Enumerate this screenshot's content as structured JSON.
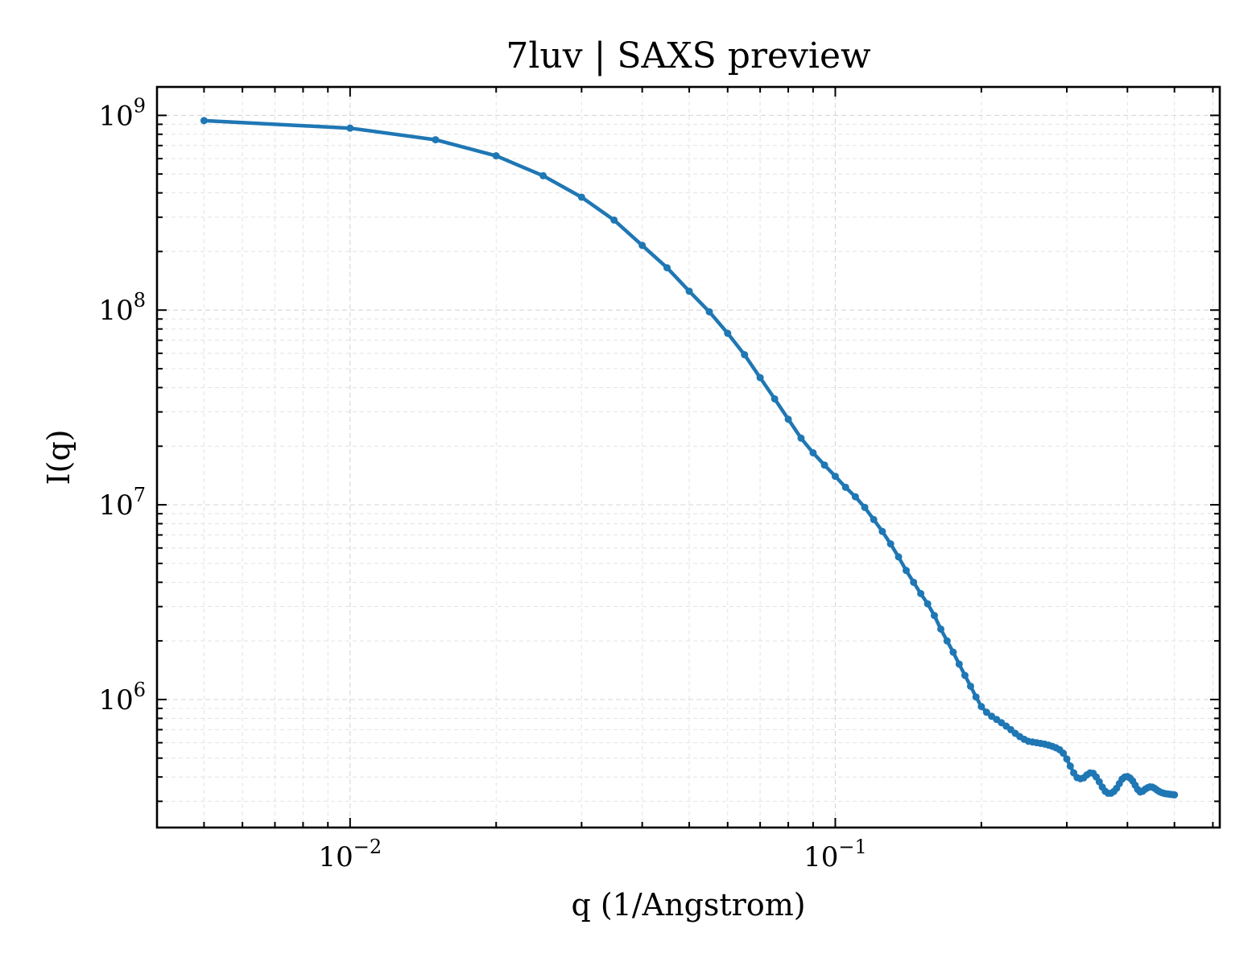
{
  "chart_data": {
    "type": "line",
    "title": "7luv | SAXS preview",
    "xlabel": "q (1/Angstrom)",
    "ylabel": "I(q)",
    "xscale": "log",
    "yscale": "log",
    "xlim": [
      0.004,
      0.62
    ],
    "ylim": [
      220000,
      1400000000
    ],
    "x_ticks": [
      {
        "value": 0.01,
        "base": "10",
        "exp": "−2"
      },
      {
        "value": 0.1,
        "base": "10",
        "exp": "−1"
      }
    ],
    "y_ticks": [
      {
        "value": 1000000,
        "base": "10",
        "exp": "6"
      },
      {
        "value": 10000000,
        "base": "10",
        "exp": "7"
      },
      {
        "value": 100000000,
        "base": "10",
        "exp": "8"
      },
      {
        "value": 1000000000,
        "base": "10",
        "exp": "9"
      }
    ],
    "grid": true,
    "color": "#1f77b4",
    "marker": "circle",
    "series": [
      {
        "x": [
          0.005,
          0.01,
          0.015,
          0.02,
          0.025,
          0.03,
          0.035,
          0.04,
          0.045,
          0.05,
          0.055,
          0.06,
          0.065,
          0.07,
          0.075,
          0.08,
          0.085,
          0.09,
          0.095,
          0.1,
          0.105,
          0.11,
          0.115,
          0.12,
          0.125,
          0.13,
          0.135,
          0.14,
          0.145,
          0.15,
          0.155,
          0.16,
          0.165,
          0.17,
          0.175,
          0.18,
          0.185,
          0.19,
          0.195,
          0.2,
          0.205,
          0.21,
          0.215,
          0.22,
          0.225,
          0.23,
          0.235,
          0.24,
          0.245,
          0.25,
          0.255,
          0.26,
          0.265,
          0.27,
          0.275,
          0.28,
          0.285,
          0.29,
          0.295,
          0.3,
          0.305,
          0.31,
          0.315,
          0.32,
          0.325,
          0.33,
          0.335,
          0.34,
          0.345,
          0.35,
          0.355,
          0.36,
          0.365,
          0.37,
          0.375,
          0.38,
          0.385,
          0.39,
          0.395,
          0.4,
          0.405,
          0.41,
          0.415,
          0.42,
          0.425,
          0.43,
          0.435,
          0.44,
          0.445,
          0.45,
          0.455,
          0.46,
          0.465,
          0.47,
          0.475,
          0.48,
          0.485,
          0.49,
          0.495,
          0.5
        ],
        "y": [
          940000000,
          860000000,
          750000000,
          620000000,
          490000000,
          380000000,
          290000000,
          215000000,
          165000000,
          125000000,
          98000000,
          76000000,
          59000000,
          45000000,
          35000000,
          27500000,
          22000000,
          18500000,
          16000000,
          14000000,
          12300000,
          11000000,
          9700000,
          8400000,
          7300000,
          6300000,
          5400000,
          4600000,
          4000000,
          3500000,
          3100000,
          2700000,
          2300000,
          2000000,
          1750000,
          1520000,
          1330000,
          1170000,
          1030000,
          920000,
          860000,
          820000,
          790000,
          760000,
          730000,
          700000,
          670000,
          645000,
          625000,
          610000,
          605000,
          600000,
          595000,
          590000,
          583000,
          575000,
          565000,
          552000,
          530000,
          495000,
          455000,
          420000,
          397000,
          392000,
          396000,
          410000,
          420000,
          418000,
          400000,
          378000,
          355000,
          338000,
          330000,
          330000,
          337000,
          350000,
          370000,
          390000,
          400000,
          402000,
          395000,
          382000,
          363000,
          345000,
          335000,
          338000,
          346000,
          352000,
          356000,
          355000,
          350000,
          343000,
          337000,
          333000,
          330000,
          328000,
          327000,
          326000,
          325000,
          324000
        ]
      }
    ]
  }
}
